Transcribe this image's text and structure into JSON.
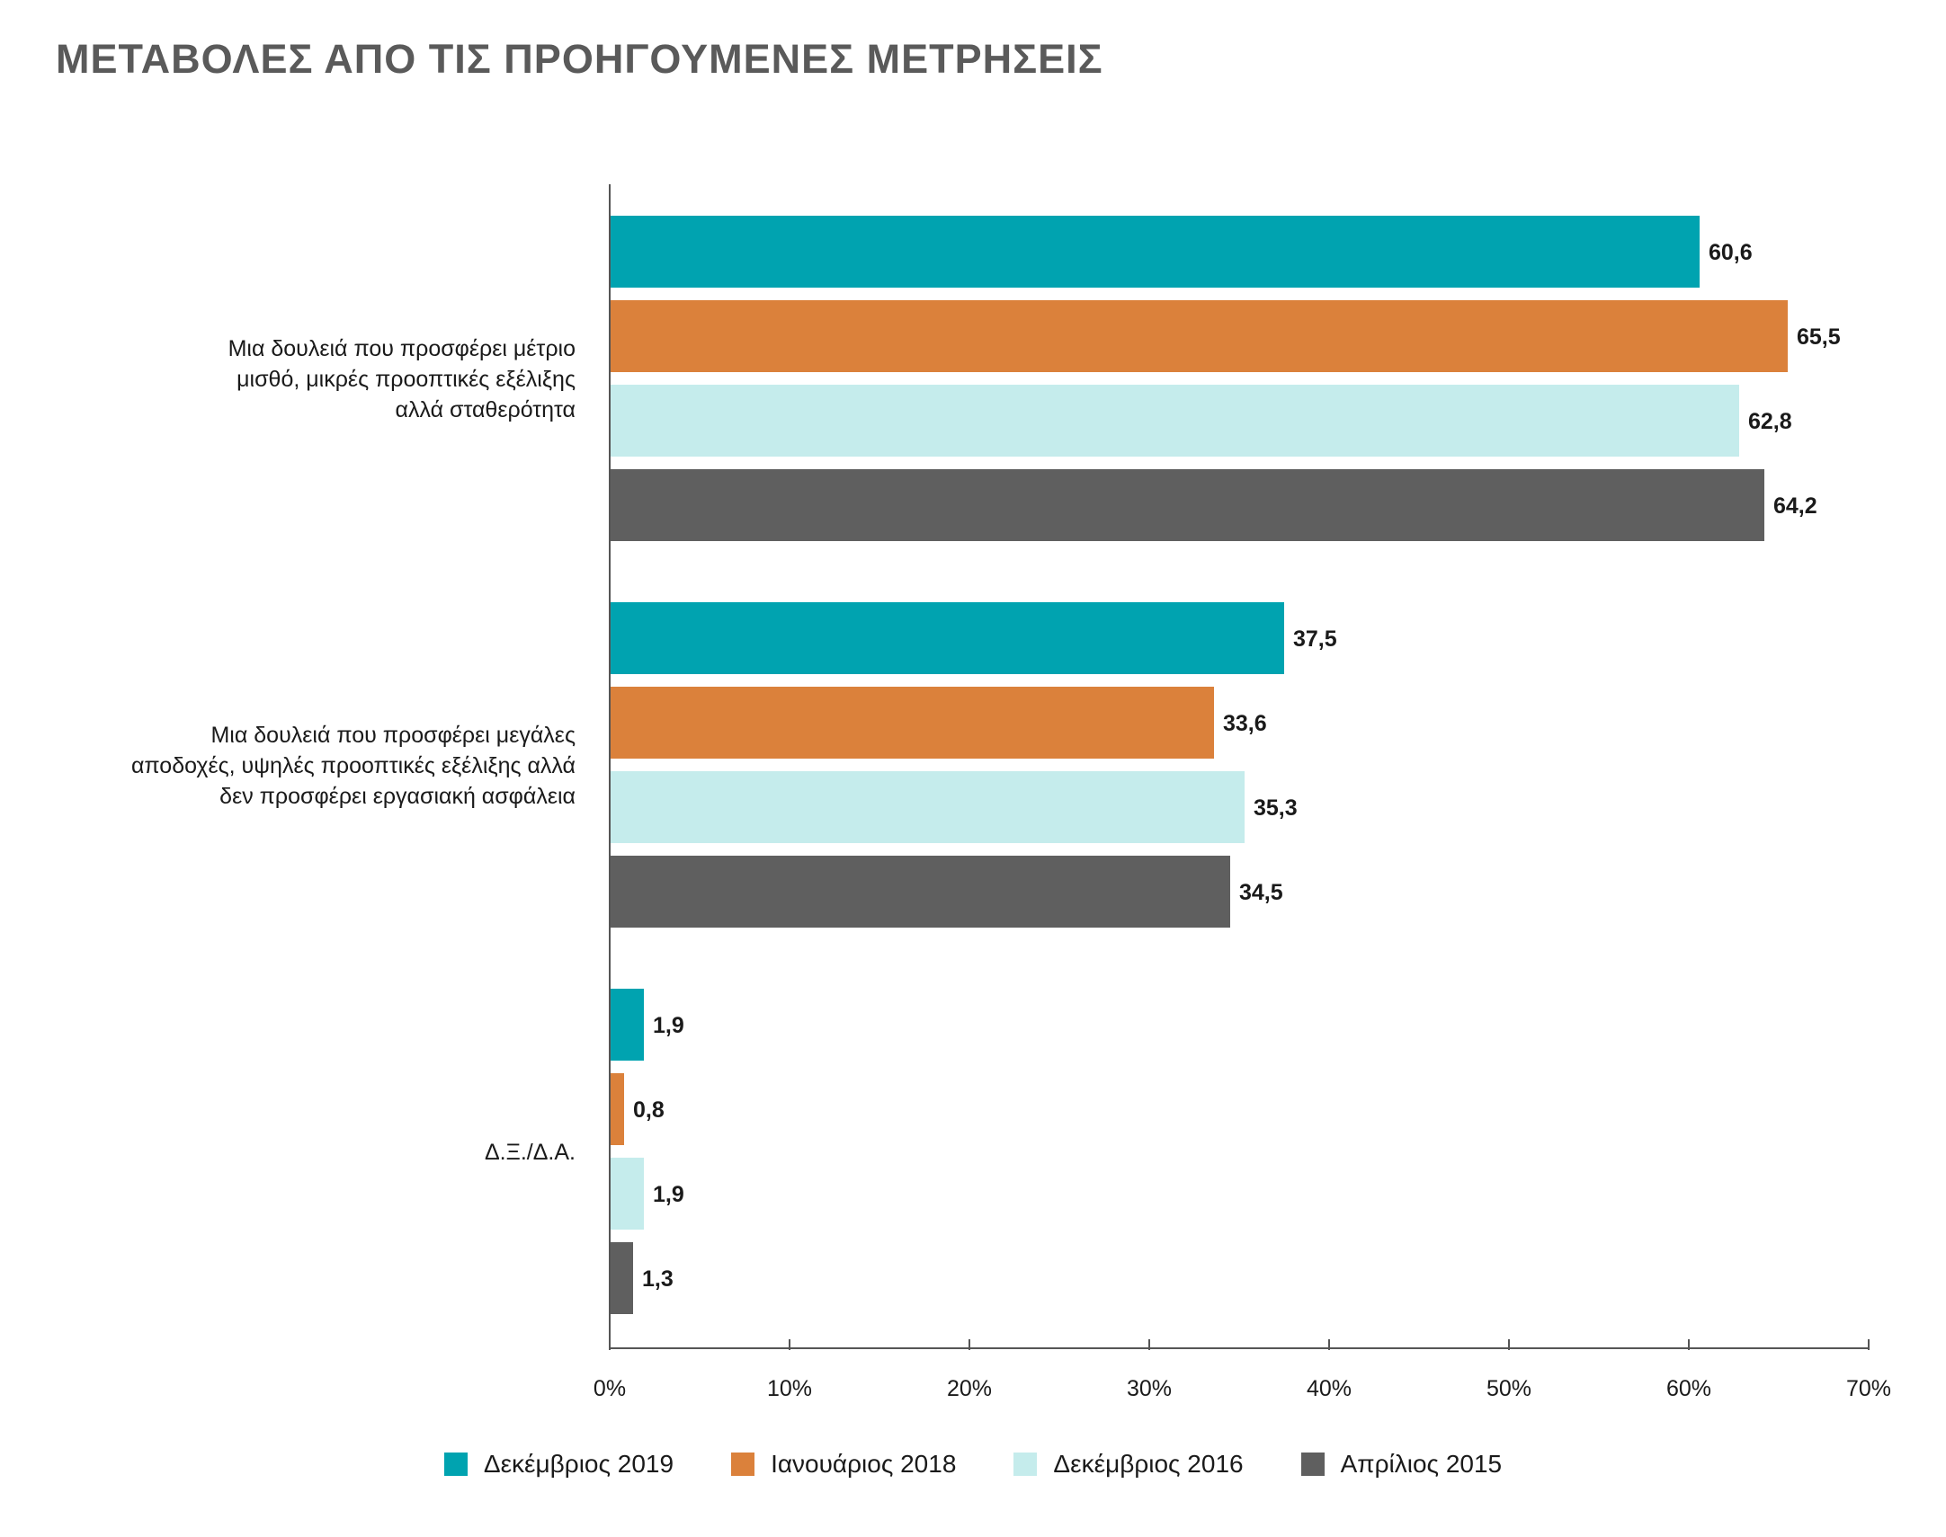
{
  "title": "ΜΕΤΑΒΟΛΕΣ ΑΠΟ ΤΙΣ ΠΡΟΗΓΟΥΜΕΝΕΣ ΜΕΤΡΗΣΕΙΣ",
  "chart_data": {
    "type": "bar",
    "orientation": "horizontal",
    "title": "ΜΕΤΑΒΟΛΕΣ ΑΠΟ ΤΙΣ ΠΡΟΗΓΟΥΜΕΝΕΣ ΜΕΤΡΗΣΕΙΣ",
    "categories": [
      [
        "Μια δουλειά που προσφέρει μέτριο",
        "μισθό, μικρές προοπτικές εξέλιξης",
        "αλλά σταθερότητα"
      ],
      [
        "Μια δουλειά που προσφέρει μεγάλες",
        "αποδοχές, υψηλές προοπτικές εξέλιξης αλλά",
        "δεν προσφέρει εργασιακή ασφάλεια"
      ],
      [
        "Δ.Ξ./Δ.Α."
      ]
    ],
    "series": [
      {
        "name": "Δεκέμβριος 2019",
        "color": "#00a3b0",
        "values": [
          60.6,
          37.5,
          1.9
        ],
        "labels": [
          "60,6",
          "37,5",
          "1,9"
        ]
      },
      {
        "name": "Ιανουάριος 2018",
        "color": "#db813b",
        "values": [
          65.5,
          33.6,
          0.8
        ],
        "labels": [
          "65,5",
          "33,6",
          "0,8"
        ]
      },
      {
        "name": "Δεκέμβριος 2016",
        "color": "#c5ecec",
        "values": [
          62.8,
          35.3,
          1.9
        ],
        "labels": [
          "62,8",
          "35,3",
          "1,9"
        ]
      },
      {
        "name": "Απρίλιος 2015",
        "color": "#5f5f5f",
        "values": [
          64.2,
          34.5,
          1.3
        ],
        "labels": [
          "64,2",
          "34,5",
          "1,3"
        ]
      }
    ],
    "xlim": [
      0,
      70
    ],
    "xticks": [
      0,
      10,
      20,
      30,
      40,
      50,
      60,
      70
    ],
    "xtick_labels": [
      "0%",
      "10%",
      "20%",
      "30%",
      "40%",
      "50%",
      "60%",
      "70%"
    ],
    "xlabel": "",
    "ylabel": "",
    "grid": false,
    "legend_position": "bottom"
  }
}
